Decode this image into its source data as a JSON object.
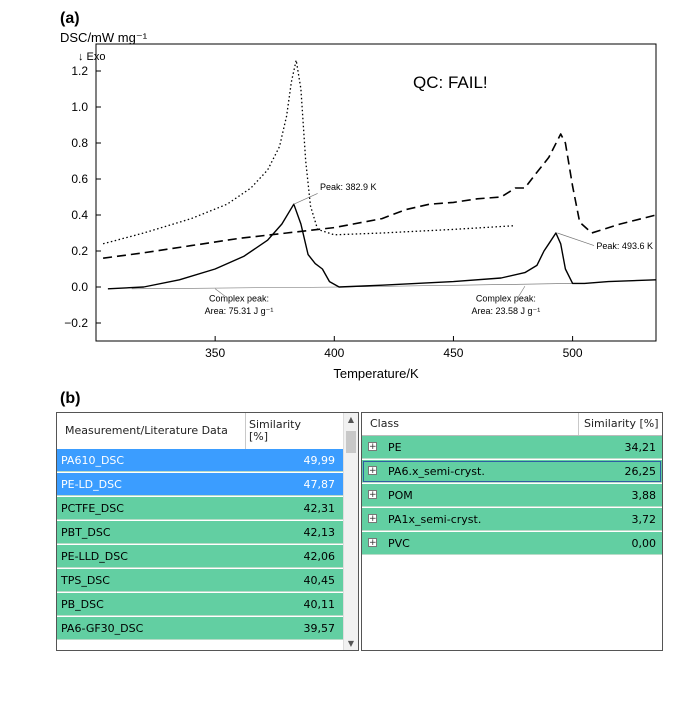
{
  "panel_a_label": "(a)",
  "panel_b_label": "(b)",
  "chart_data": {
    "type": "line",
    "ylabel": "DSC/mW mg⁻¹",
    "exo_label": "↓ Exo",
    "xlabel": "Temperature/K",
    "xlim": [
      300,
      535
    ],
    "ylim": [
      -0.3,
      1.35
    ],
    "xticks": [
      350,
      400,
      450,
      500
    ],
    "yticks": [
      -0.2,
      0.0,
      0.2,
      0.4,
      0.6,
      0.8,
      1.0,
      1.2
    ],
    "grid": false,
    "annotation_qc": "QC: FAIL!",
    "annotation_peak1": "Peak: 382.9 K",
    "annotation_peak2": "Peak: 493.6 K",
    "annotation_area1_title": "Complex peak:",
    "annotation_area1_value": "Area: 75.31 J g⁻¹",
    "annotation_area2_title": "Complex peak:",
    "annotation_area2_value": "Area: 23.58 J g⁻¹",
    "series": [
      {
        "style": "solid",
        "x": [
          305,
          320,
          335,
          350,
          362,
          372,
          378,
          383,
          386,
          389,
          392,
          395,
          398,
          402,
          420,
          450,
          470,
          480,
          485,
          488,
          490,
          493,
          495,
          497,
          500,
          505,
          515,
          535
        ],
        "y": [
          -0.01,
          0.0,
          0.04,
          0.1,
          0.17,
          0.26,
          0.35,
          0.46,
          0.35,
          0.18,
          0.13,
          0.1,
          0.03,
          0.0,
          0.01,
          0.03,
          0.05,
          0.08,
          0.12,
          0.2,
          0.24,
          0.3,
          0.24,
          0.1,
          0.02,
          0.02,
          0.03,
          0.04
        ]
      },
      {
        "style": "dashed",
        "x": [
          303,
          320,
          340,
          360,
          380,
          400,
          420,
          430,
          440,
          450,
          460,
          470,
          476,
          480,
          484,
          490,
          495,
          497,
          500,
          503,
          508,
          520,
          535
        ],
        "y": [
          0.16,
          0.19,
          0.23,
          0.27,
          0.3,
          0.33,
          0.38,
          0.43,
          0.46,
          0.47,
          0.49,
          0.5,
          0.55,
          0.55,
          0.62,
          0.72,
          0.85,
          0.8,
          0.56,
          0.36,
          0.3,
          0.35,
          0.4
        ]
      },
      {
        "style": "dotted",
        "x": [
          303,
          320,
          340,
          355,
          365,
          372,
          377,
          380,
          382,
          384,
          386,
          388,
          390,
          393,
          400,
          420,
          450,
          475
        ],
        "y": [
          0.24,
          0.3,
          0.38,
          0.46,
          0.55,
          0.65,
          0.78,
          0.95,
          1.14,
          1.26,
          1.1,
          0.7,
          0.45,
          0.32,
          0.29,
          0.3,
          0.32,
          0.34
        ]
      }
    ]
  },
  "left_table": {
    "headers": [
      "Measurement/Literature Data",
      "Similarity [%]"
    ],
    "rows": [
      {
        "name": "PA610_DSC",
        "value": "49,99",
        "state": "blue"
      },
      {
        "name": "PE-LD_DSC",
        "value": "47,87",
        "state": "blue"
      },
      {
        "name": "PCTFE_DSC",
        "value": "42,31",
        "state": "green"
      },
      {
        "name": "PBT_DSC",
        "value": "42,13",
        "state": "green"
      },
      {
        "name": "PE-LLD_DSC",
        "value": "42,06",
        "state": "green"
      },
      {
        "name": "TPS_DSC",
        "value": "40,45",
        "state": "green"
      },
      {
        "name": "PB_DSC",
        "value": "40,11",
        "state": "green"
      },
      {
        "name": "PA6-GF30_DSC",
        "value": "39,57",
        "state": "green"
      }
    ]
  },
  "right_table": {
    "headers": [
      "Class",
      "Similarity [%]"
    ],
    "rows": [
      {
        "name": "PE",
        "value": "34,21",
        "selected": false
      },
      {
        "name": "PA6.x_semi-cryst.",
        "value": "26,25",
        "selected": true
      },
      {
        "name": "POM",
        "value": "3,88",
        "selected": false
      },
      {
        "name": "PA1x_semi-cryst.",
        "value": "3,72",
        "selected": false
      },
      {
        "name": "PVC",
        "value": "0,00",
        "selected": false
      }
    ]
  },
  "expand_glyph": "+"
}
